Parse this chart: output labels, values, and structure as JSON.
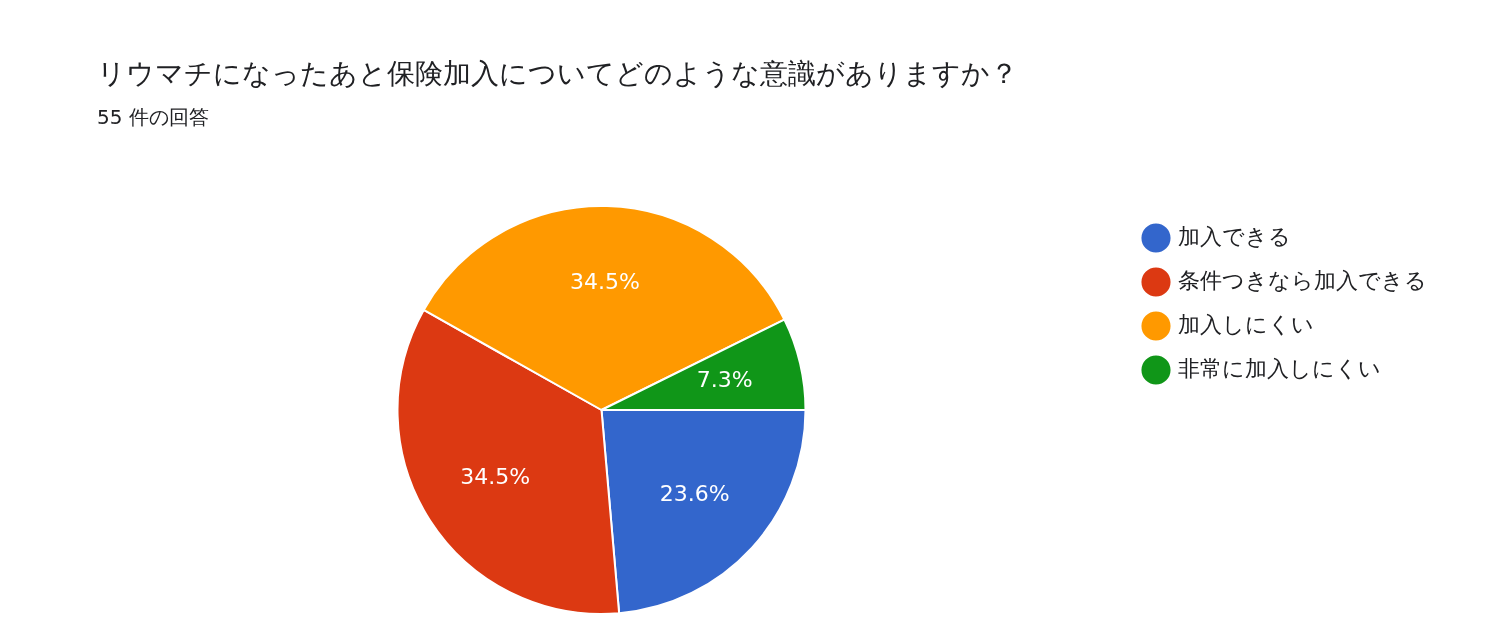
{
  "chart_data": {
    "type": "pie",
    "title": "リウマチになったあと保険加入についてどのような意識がありますか？",
    "subtitle": "55 件の回答",
    "categories": [
      "加入できる",
      "条件つきなら加入できる",
      "加入しにくい",
      "非常に加入しにくい"
    ],
    "values": [
      23.6,
      34.5,
      34.5,
      7.3
    ],
    "value_labels": [
      "23.6%",
      "34.5%",
      "34.5%",
      "7.3%"
    ],
    "colors": [
      "#3366cc",
      "#dc3912",
      "#ff9900",
      "#109618"
    ],
    "legend": "right"
  }
}
